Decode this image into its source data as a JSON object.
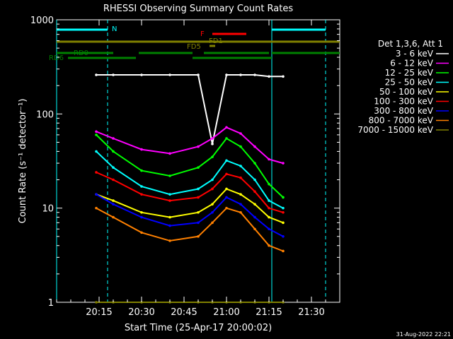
{
  "chart_data": {
    "type": "line",
    "title": "RHESSI Observing Summary Count Rates",
    "xlabel": "Start Time (25-Apr-17 20:00:02)",
    "ylabel": "Count Rate (s⁻¹ detector⁻¹)",
    "y_scale": "log",
    "ylim": [
      1,
      1000
    ],
    "xlim": [
      "20:00",
      "21:40"
    ],
    "x_ticks": [
      "20:15",
      "20:30",
      "20:45",
      "21:00",
      "21:15",
      "21:30"
    ],
    "y_ticks": [
      "1",
      "10",
      "100",
      "1000"
    ],
    "grid": false,
    "legend_position": "right",
    "legend_title": "Det 1,3,6, Att 1",
    "x": [
      "20:14",
      "20:20",
      "20:30",
      "20:40",
      "20:50",
      "20:55",
      "21:00",
      "21:05",
      "21:10",
      "21:15",
      "21:20"
    ],
    "series": [
      {
        "name": "3 - 6 keV",
        "color": "#ffffff",
        "values": [
          260,
          260,
          260,
          260,
          260,
          48,
          260,
          260,
          260,
          250,
          250
        ]
      },
      {
        "name": "6 - 12 keV",
        "color": "#ff00ff",
        "values": [
          65,
          55,
          42,
          38,
          45,
          55,
          72,
          62,
          45,
          33,
          30
        ]
      },
      {
        "name": "12 - 25 keV",
        "color": "#00ff00",
        "values": [
          60,
          40,
          25,
          22,
          27,
          35,
          55,
          45,
          30,
          18,
          13
        ]
      },
      {
        "name": "25 - 50 keV",
        "color": "#00ffff",
        "values": [
          40,
          27,
          17,
          14,
          16,
          20,
          32,
          28,
          20,
          12,
          10
        ]
      },
      {
        "name": "50 - 100 keV",
        "color": "#ffff00",
        "values": [
          14,
          12,
          9,
          8,
          9,
          11,
          16,
          14,
          11,
          8,
          7
        ]
      },
      {
        "name": "100 - 300 keV",
        "color": "#ff0000",
        "values": [
          24,
          20,
          14,
          12,
          13,
          16,
          23,
          21,
          15,
          10,
          9
        ]
      },
      {
        "name": "300 - 800 keV",
        "color": "#0000ff",
        "values": [
          14,
          11,
          8,
          6.5,
          7,
          9,
          13,
          11,
          8,
          6,
          5
        ]
      },
      {
        "name": "800 - 7000 keV",
        "color": "#ff8000",
        "values": [
          10,
          8,
          5.5,
          4.5,
          5,
          7,
          10,
          9,
          6,
          4,
          3.5
        ]
      },
      {
        "name": "7000 - 15000 keV",
        "color": "#808000",
        "values": [
          1,
          1,
          1,
          1,
          1,
          1,
          1,
          1,
          1,
          1,
          1
        ]
      }
    ],
    "flag_bars": [
      {
        "label": "N",
        "color": "#00ffff",
        "segments": [
          [
            "20:00",
            "20:18"
          ],
          [
            "21:16",
            "21:35"
          ]
        ]
      },
      {
        "label": "F",
        "color": "#ff0000",
        "segments": [
          [
            "20:55",
            "21:07"
          ]
        ]
      },
      {
        "label": "FD1",
        "color": "#808000",
        "segments": [
          [
            "20:00",
            "21:40"
          ]
        ]
      },
      {
        "label": "FD5",
        "color": "#808000",
        "segments": [
          [
            "20:54",
            "20:56"
          ]
        ]
      },
      {
        "label": "RD0",
        "color": "#008000",
        "segments": [
          [
            "20:00",
            "20:20"
          ],
          [
            "20:29",
            "20:48"
          ],
          [
            "20:52",
            "21:15"
          ],
          [
            "21:16",
            "21:40"
          ]
        ]
      },
      {
        "label": "RD6",
        "color": "#008000",
        "segments": [
          [
            "20:04",
            "20:28"
          ],
          [
            "20:48",
            "21:16"
          ]
        ]
      }
    ],
    "vertical_markers": [
      "20:00",
      "20:18",
      "21:16",
      "21:35"
    ]
  },
  "footer": {
    "timestamp": "31-Aug-2022 22:21"
  }
}
